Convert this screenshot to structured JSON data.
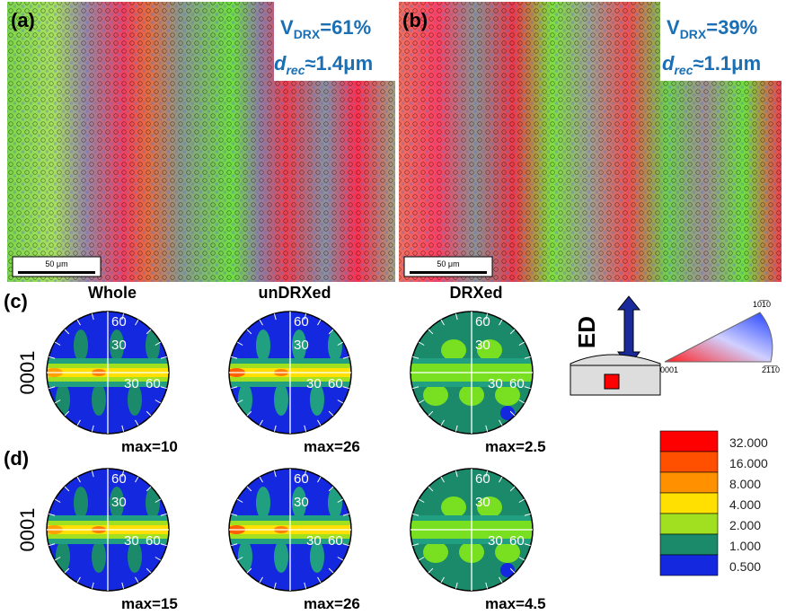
{
  "panels": [
    {
      "label": "(a)",
      "v_symbol": "V",
      "v_sub": "DRX",
      "v_value": "=61%",
      "d_symbol": "d",
      "d_sub": "rec",
      "d_value": "≈1.4μm",
      "scale_bar": "50 μm"
    },
    {
      "label": "(b)",
      "v_symbol": "V",
      "v_sub": "DRX",
      "v_value": "=39%",
      "d_symbol": "d",
      "d_sub": "rec",
      "d_value": "≈1.1μm",
      "scale_bar": "50 μm"
    }
  ],
  "pole_figures": {
    "columns": [
      "Whole",
      "unDRXed",
      "DRXed"
    ],
    "ring_labels": [
      "60",
      "30",
      "30",
      "60"
    ],
    "rows": [
      {
        "label": "(c)",
        "axis": "0001",
        "max": [
          "max=10",
          "max=26",
          "max=2.5"
        ]
      },
      {
        "label": "(d)",
        "axis": "0001",
        "max": [
          "max=15",
          "max=26",
          "max=4.5"
        ]
      }
    ]
  },
  "sample": {
    "direction": "ED"
  },
  "ipf": {
    "top": "10̅1̅0",
    "left": "0001",
    "right": "2̅1̅1̅0"
  },
  "legend": {
    "levels": [
      "32.000",
      "16.000",
      "8.000",
      "4.000",
      "2.000",
      "1.000",
      "0.500"
    ]
  }
}
